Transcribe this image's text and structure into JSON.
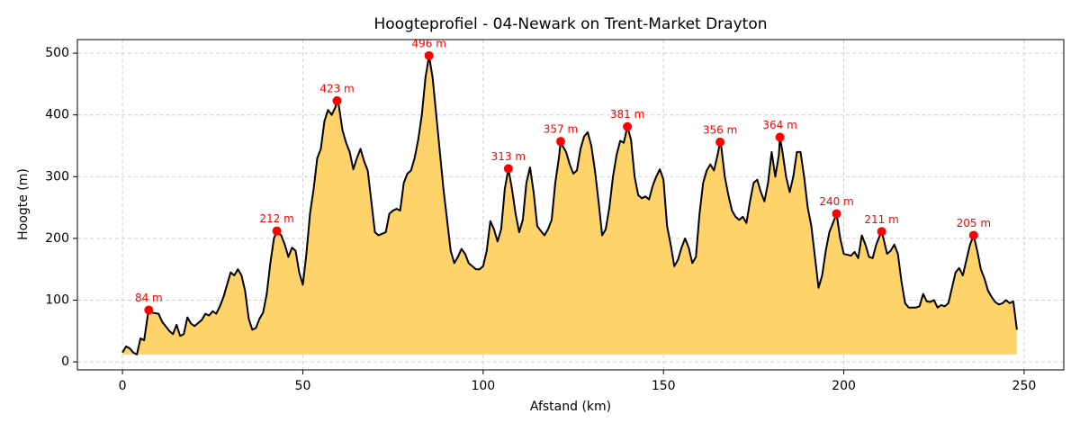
{
  "chart_data": {
    "type": "area",
    "title": "Hoogteprofiel - 04-Newark on Trent-Market Drayton",
    "x_label": "Afstand (km)",
    "y_label": "Hoogte (m)",
    "xlim": [
      -12.5,
      261
    ],
    "ylim": [
      -13,
      522
    ],
    "xticks": [
      0,
      50,
      100,
      150,
      200,
      250
    ],
    "yticks": [
      0,
      100,
      200,
      300,
      400,
      500
    ],
    "grid": true,
    "line_color": "#000000",
    "fill_color": "#fdd36a",
    "x": [
      0,
      1,
      2,
      3,
      4,
      5,
      6,
      7,
      7.3,
      8,
      10,
      11,
      13,
      14,
      15,
      16,
      17,
      18,
      19,
      20,
      22,
      23,
      24,
      25,
      26,
      27,
      28,
      29,
      30,
      31,
      32,
      33,
      34,
      35,
      36,
      37,
      38,
      39,
      40,
      41,
      42,
      42.8,
      44,
      45,
      46,
      47,
      48,
      49,
      50,
      51,
      52,
      53,
      54,
      55,
      56,
      57,
      58,
      59,
      59.5,
      60,
      61,
      62,
      63,
      64,
      65,
      66,
      67,
      68,
      69,
      70,
      71,
      73,
      74,
      75,
      76,
      77,
      78,
      79,
      80,
      81,
      82,
      83,
      84,
      85,
      86,
      87,
      88,
      89,
      90,
      91,
      92,
      93,
      94,
      95,
      96,
      97,
      98,
      99,
      100,
      101,
      102,
      103,
      104,
      105,
      106,
      107,
      108,
      109,
      110,
      111,
      112,
      113,
      114,
      115,
      116,
      117,
      118,
      119,
      120,
      121,
      121.5,
      122,
      123,
      124,
      125,
      126,
      127,
      128,
      129,
      130,
      131,
      132,
      133,
      134,
      135,
      136,
      137,
      138,
      139,
      140,
      141,
      142,
      143,
      144,
      145,
      146,
      147,
      148,
      149,
      150,
      151,
      152,
      153,
      154,
      155,
      156,
      157,
      158,
      159,
      160,
      161,
      162,
      163,
      164,
      165,
      165.7,
      166,
      167,
      168,
      169,
      170,
      171,
      172,
      173,
      174,
      175,
      176,
      177,
      178,
      179,
      180,
      181,
      182,
      182.3,
      183,
      184,
      185,
      186,
      187,
      188,
      189,
      190,
      191,
      192,
      193,
      194,
      195,
      196,
      197,
      198,
      199,
      200,
      202,
      203,
      204,
      205,
      206,
      207,
      208,
      209,
      210,
      210.5,
      211,
      212,
      213,
      214,
      215,
      216,
      217,
      218,
      220,
      221,
      222,
      223,
      224,
      225,
      226,
      227,
      228,
      229,
      230,
      231,
      232,
      233,
      234,
      235,
      236,
      237,
      238,
      239,
      240,
      241,
      242,
      243,
      244,
      245,
      246,
      247,
      248
    ],
    "values": [
      15,
      25,
      22,
      15,
      12,
      38,
      35,
      75,
      84,
      80,
      78,
      65,
      50,
      45,
      60,
      42,
      45,
      72,
      62,
      58,
      68,
      78,
      75,
      82,
      78,
      90,
      105,
      125,
      145,
      140,
      150,
      140,
      115,
      70,
      52,
      55,
      70,
      80,
      110,
      160,
      200,
      212,
      205,
      190,
      170,
      185,
      180,
      145,
      125,
      175,
      240,
      280,
      330,
      345,
      390,
      408,
      400,
      412,
      423,
      415,
      375,
      355,
      340,
      312,
      330,
      345,
      325,
      310,
      260,
      210,
      205,
      210,
      240,
      245,
      248,
      245,
      290,
      305,
      310,
      330,
      360,
      400,
      460,
      496,
      460,
      400,
      340,
      280,
      230,
      180,
      160,
      170,
      183,
      175,
      160,
      155,
      150,
      150,
      155,
      180,
      228,
      215,
      195,
      215,
      280,
      313,
      280,
      240,
      210,
      230,
      290,
      315,
      275,
      220,
      212,
      205,
      215,
      230,
      290,
      330,
      357,
      350,
      340,
      320,
      305,
      310,
      345,
      365,
      372,
      350,
      310,
      260,
      205,
      215,
      250,
      300,
      335,
      358,
      355,
      381,
      360,
      300,
      270,
      265,
      268,
      263,
      285,
      300,
      312,
      295,
      220,
      190,
      155,
      165,
      185,
      200,
      185,
      160,
      170,
      240,
      290,
      310,
      320,
      310,
      335,
      356,
      350,
      300,
      270,
      245,
      235,
      230,
      235,
      225,
      260,
      290,
      295,
      275,
      260,
      290,
      340,
      300,
      335,
      364,
      340,
      300,
      275,
      300,
      340,
      340,
      300,
      250,
      220,
      170,
      120,
      140,
      180,
      210,
      225,
      240,
      200,
      175,
      172,
      178,
      168,
      205,
      190,
      170,
      168,
      190,
      205,
      211,
      200,
      175,
      180,
      190,
      175,
      130,
      95,
      88,
      88,
      90,
      110,
      98,
      97,
      100,
      88,
      92,
      90,
      95,
      120,
      145,
      152,
      140,
      165,
      190,
      205,
      180,
      150,
      135,
      115,
      105,
      97,
      93,
      95,
      100,
      95,
      98,
      52
    ],
    "peaks": {
      "color": "#ff0000",
      "x": [
        7.3,
        42.8,
        59.5,
        85,
        107,
        121.5,
        140,
        165.7,
        182.3,
        198,
        210.5,
        236
      ],
      "values": [
        84,
        212,
        423,
        496,
        313,
        357,
        381,
        356,
        364,
        240,
        211,
        205
      ],
      "value_labels": [
        "84 m",
        "212 m",
        "423 m",
        "496 m",
        "313 m",
        "357 m",
        "381 m",
        "356 m",
        "364 m",
        "240 m",
        "211 m",
        "205 m"
      ]
    }
  }
}
